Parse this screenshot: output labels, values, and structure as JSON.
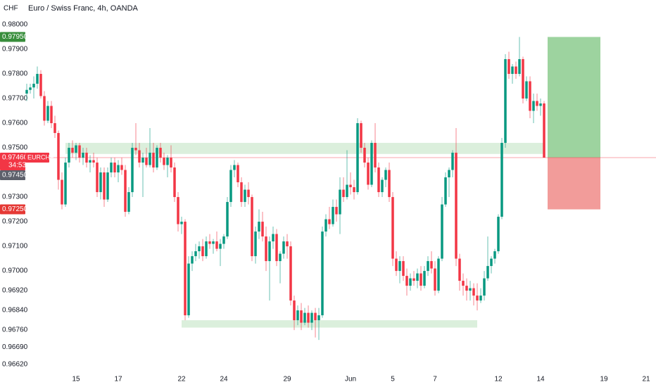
{
  "chart_data": {
    "type": "candlestick",
    "title": "Euro / Swiss Franc, 4h, OANDA",
    "currency": "CHF",
    "symbol": "EURCHF",
    "countdown": "34:53",
    "up_color": "#089981",
    "down_color": "#f23645",
    "ylim": [
      0.96586,
      0.981
    ],
    "xlim": [
      -0.6,
      178.8
    ],
    "yticks": [
      {
        "value": 0.98,
        "label": "0.98000"
      },
      {
        "value": 0.979,
        "label": "0.97900"
      },
      {
        "value": 0.978,
        "label": "0.97800"
      },
      {
        "value": 0.977,
        "label": "0.97700"
      },
      {
        "value": 0.976,
        "label": "0.97600"
      },
      {
        "value": 0.975,
        "label": "0.97500"
      },
      {
        "value": 0.973,
        "label": "0.97300"
      },
      {
        "value": 0.972,
        "label": "0.97200"
      },
      {
        "value": 0.971,
        "label": "0.97100"
      },
      {
        "value": 0.97,
        "label": "0.97000"
      },
      {
        "value": 0.9692,
        "label": "0.96920"
      },
      {
        "value": 0.9684,
        "label": "0.96840"
      },
      {
        "value": 0.9676,
        "label": "0.96760"
      },
      {
        "value": 0.9669,
        "label": "0.96690"
      },
      {
        "value": 0.9662,
        "label": "0.96620"
      }
    ],
    "xticks": [
      {
        "value": 14,
        "label": "15"
      },
      {
        "value": 26,
        "label": "17"
      },
      {
        "value": 44,
        "label": "22"
      },
      {
        "value": 56,
        "label": "24"
      },
      {
        "value": 74,
        "label": "29"
      },
      {
        "value": 92,
        "label": "Jun"
      },
      {
        "value": 104,
        "label": "5"
      },
      {
        "value": 116,
        "label": "7"
      },
      {
        "value": 134,
        "label": "12"
      },
      {
        "value": 146,
        "label": "14"
      },
      {
        "value": 164,
        "label": "19"
      },
      {
        "value": 176,
        "label": "21"
      }
    ],
    "last_price": {
      "value": 0.9746,
      "label": "0.97460"
    },
    "crosshair_price": {
      "value": 0.9745,
      "label": "0.97450"
    },
    "position": {
      "from": 148,
      "to": 163,
      "target": 0.9795,
      "target_label": "0.97950",
      "entry": 0.9746,
      "stop": 0.9725,
      "stop_label": "0.97250"
    },
    "zones": [
      {
        "from": 11,
        "to": 147,
        "top": 0.9752,
        "bottom": 0.97475
      },
      {
        "from": 44,
        "to": 128,
        "top": 0.968,
        "bottom": 0.9677
      }
    ],
    "candles": [
      [
        0.9772,
        0.9776,
        0.9769,
        0.97735
      ],
      [
        0.97735,
        0.9776,
        0.9772,
        0.97745
      ],
      [
        0.97745,
        0.9779,
        0.977,
        0.9776
      ],
      [
        0.9776,
        0.9783,
        0.9774,
        0.978
      ],
      [
        0.978,
        0.97815,
        0.977,
        0.9771
      ],
      [
        0.9771,
        0.9773,
        0.9759,
        0.9761
      ],
      [
        0.9761,
        0.9769,
        0.976,
        0.9767
      ],
      [
        0.9767,
        0.9769,
        0.9758,
        0.976
      ],
      [
        0.976,
        0.9763,
        0.9754,
        0.9756
      ],
      [
        0.9756,
        0.9757,
        0.9733,
        0.9737
      ],
      [
        0.9737,
        0.974,
        0.9725,
        0.9727
      ],
      [
        0.9727,
        0.9746,
        0.9726,
        0.9744
      ],
      [
        0.9744,
        0.9752,
        0.9742,
        0.975
      ],
      [
        0.975,
        0.9753,
        0.9746,
        0.9748
      ],
      [
        0.9748,
        0.9752,
        0.9745,
        0.9751
      ],
      [
        0.9751,
        0.9752,
        0.9744,
        0.9746
      ],
      [
        0.9746,
        0.975,
        0.9743,
        0.9748
      ],
      [
        0.9748,
        0.975,
        0.9742,
        0.9744
      ],
      [
        0.9744,
        0.9747,
        0.974,
        0.9745
      ],
      [
        0.9745,
        0.9748,
        0.9742,
        0.9744
      ],
      [
        0.9744,
        0.9746,
        0.973,
        0.9732
      ],
      [
        0.9732,
        0.9742,
        0.9729,
        0.974
      ],
      [
        0.974,
        0.9742,
        0.9726,
        0.9729
      ],
      [
        0.9729,
        0.9742,
        0.9728,
        0.974
      ],
      [
        0.974,
        0.9746,
        0.9738,
        0.9744
      ],
      [
        0.9744,
        0.9746,
        0.9738,
        0.974
      ],
      [
        0.974,
        0.9745,
        0.9736,
        0.9743
      ],
      [
        0.9743,
        0.9746,
        0.9739,
        0.9741
      ],
      [
        0.9741,
        0.9743,
        0.9722,
        0.9724
      ],
      [
        0.9724,
        0.9734,
        0.9723,
        0.9732
      ],
      [
        0.9732,
        0.9752,
        0.973,
        0.975
      ],
      [
        0.975,
        0.976,
        0.9747,
        0.9749
      ],
      [
        0.9749,
        0.9752,
        0.9742,
        0.9744
      ],
      [
        0.9744,
        0.9748,
        0.973,
        0.9746
      ],
      [
        0.9746,
        0.975,
        0.9742,
        0.9743
      ],
      [
        0.9743,
        0.9758,
        0.9742,
        0.9748
      ],
      [
        0.9748,
        0.9752,
        0.974,
        0.9742
      ],
      [
        0.9742,
        0.9751,
        0.9741,
        0.975
      ],
      [
        0.975,
        0.9752,
        0.9744,
        0.9746
      ],
      [
        0.9746,
        0.9748,
        0.9741,
        0.9743
      ],
      [
        0.9743,
        0.9747,
        0.9738,
        0.9746
      ],
      [
        0.9746,
        0.9751,
        0.974,
        0.9742
      ],
      [
        0.9742,
        0.9744,
        0.9728,
        0.973
      ],
      [
        0.973,
        0.9732,
        0.9716,
        0.9719
      ],
      [
        0.9719,
        0.9722,
        0.9715,
        0.972
      ],
      [
        0.972,
        0.9721,
        0.968,
        0.9682
      ],
      [
        0.9682,
        0.9706,
        0.9681,
        0.9703
      ],
      [
        0.9703,
        0.9708,
        0.97,
        0.9706
      ],
      [
        0.9706,
        0.9711,
        0.9704,
        0.9708
      ],
      [
        0.9708,
        0.9712,
        0.9705,
        0.971
      ],
      [
        0.971,
        0.9713,
        0.9704,
        0.9706
      ],
      [
        0.9706,
        0.9714,
        0.9705,
        0.9712
      ],
      [
        0.9712,
        0.9715,
        0.9709,
        0.9711
      ],
      [
        0.9711,
        0.9713,
        0.9707,
        0.9712
      ],
      [
        0.9712,
        0.9716,
        0.9708,
        0.9709
      ],
      [
        0.9709,
        0.9713,
        0.9702,
        0.9711
      ],
      [
        0.9711,
        0.9715,
        0.9709,
        0.9714
      ],
      [
        0.9714,
        0.973,
        0.9713,
        0.9728
      ],
      [
        0.9728,
        0.9743,
        0.9726,
        0.9741
      ],
      [
        0.9741,
        0.9745,
        0.9738,
        0.9743
      ],
      [
        0.9743,
        0.9744,
        0.9734,
        0.9736
      ],
      [
        0.9736,
        0.9738,
        0.9726,
        0.9728
      ],
      [
        0.9728,
        0.9735,
        0.9726,
        0.9733
      ],
      [
        0.9733,
        0.9736,
        0.9727,
        0.973
      ],
      [
        0.973,
        0.9731,
        0.9704,
        0.9706
      ],
      [
        0.9706,
        0.9718,
        0.9703,
        0.9716
      ],
      [
        0.9716,
        0.9725,
        0.9713,
        0.972
      ],
      [
        0.972,
        0.9724,
        0.9712,
        0.9714
      ],
      [
        0.9714,
        0.9718,
        0.97,
        0.9704
      ],
      [
        0.9704,
        0.9714,
        0.9688,
        0.9712
      ],
      [
        0.9712,
        0.9718,
        0.9709,
        0.9715
      ],
      [
        0.9715,
        0.9717,
        0.9702,
        0.9704
      ],
      [
        0.9704,
        0.9708,
        0.9695,
        0.9707
      ],
      [
        0.9707,
        0.9714,
        0.9705,
        0.9712
      ],
      [
        0.9712,
        0.9715,
        0.9705,
        0.971
      ],
      [
        0.971,
        0.9712,
        0.9686,
        0.9688
      ],
      [
        0.9688,
        0.969,
        0.9676,
        0.968
      ],
      [
        0.968,
        0.9686,
        0.9678,
        0.9684
      ],
      [
        0.9684,
        0.9687,
        0.9676,
        0.9679
      ],
      [
        0.9679,
        0.9685,
        0.9678,
        0.9683
      ],
      [
        0.9683,
        0.9686,
        0.9677,
        0.9679
      ],
      [
        0.9679,
        0.9684,
        0.9676,
        0.9683
      ],
      [
        0.9683,
        0.9685,
        0.9673,
        0.968
      ],
      [
        0.968,
        0.9685,
        0.9672,
        0.9682
      ],
      [
        0.9682,
        0.9718,
        0.9681,
        0.9716
      ],
      [
        0.9716,
        0.9723,
        0.9714,
        0.9721
      ],
      [
        0.9721,
        0.9726,
        0.9717,
        0.9719
      ],
      [
        0.9719,
        0.9729,
        0.9718,
        0.9726
      ],
      [
        0.9726,
        0.9729,
        0.972,
        0.9723
      ],
      [
        0.9723,
        0.9738,
        0.9715,
        0.9733
      ],
      [
        0.9733,
        0.9738,
        0.9728,
        0.973
      ],
      [
        0.973,
        0.9749,
        0.9729,
        0.9735
      ],
      [
        0.9735,
        0.974,
        0.9731,
        0.9734
      ],
      [
        0.9734,
        0.9737,
        0.9729,
        0.9732
      ],
      [
        0.9732,
        0.9762,
        0.9731,
        0.976
      ],
      [
        0.976,
        0.9761,
        0.9748,
        0.975
      ],
      [
        0.975,
        0.9752,
        0.9742,
        0.9744
      ],
      [
        0.9744,
        0.9746,
        0.9733,
        0.9735
      ],
      [
        0.9735,
        0.9753,
        0.9734,
        0.9752
      ],
      [
        0.9752,
        0.976,
        0.974,
        0.9742
      ],
      [
        0.9742,
        0.9744,
        0.973,
        0.9732
      ],
      [
        0.9732,
        0.9738,
        0.973,
        0.9737
      ],
      [
        0.9737,
        0.9742,
        0.9734,
        0.9741
      ],
      [
        0.9741,
        0.9744,
        0.9728,
        0.973
      ],
      [
        0.973,
        0.9732,
        0.9702,
        0.9705
      ],
      [
        0.9705,
        0.9708,
        0.9698,
        0.97
      ],
      [
        0.97,
        0.9706,
        0.9695,
        0.9704
      ],
      [
        0.9704,
        0.9706,
        0.9696,
        0.9698
      ],
      [
        0.9698,
        0.9701,
        0.969,
        0.9694
      ],
      [
        0.9694,
        0.9699,
        0.9692,
        0.9697
      ],
      [
        0.9697,
        0.97,
        0.9694,
        0.9696
      ],
      [
        0.9696,
        0.9701,
        0.9693,
        0.9699
      ],
      [
        0.9699,
        0.9702,
        0.9692,
        0.9694
      ],
      [
        0.9694,
        0.9702,
        0.9693,
        0.97
      ],
      [
        0.97,
        0.9706,
        0.9698,
        0.9704
      ],
      [
        0.9704,
        0.9708,
        0.9699,
        0.9701
      ],
      [
        0.9701,
        0.9704,
        0.969,
        0.9692
      ],
      [
        0.9692,
        0.9706,
        0.9691,
        0.9705
      ],
      [
        0.9705,
        0.973,
        0.9704,
        0.9727
      ],
      [
        0.9727,
        0.974,
        0.9726,
        0.9738
      ],
      [
        0.9738,
        0.9742,
        0.973,
        0.9741
      ],
      [
        0.9741,
        0.9749,
        0.9738,
        0.9748
      ],
      [
        0.9748,
        0.9758,
        0.9702,
        0.9705
      ],
      [
        0.9705,
        0.9707,
        0.9692,
        0.9696
      ],
      [
        0.9696,
        0.9699,
        0.969,
        0.9694
      ],
      [
        0.9694,
        0.9697,
        0.9688,
        0.9692
      ],
      [
        0.9692,
        0.9696,
        0.9688,
        0.9693
      ],
      [
        0.9693,
        0.9695,
        0.9686,
        0.969
      ],
      [
        0.969,
        0.9695,
        0.9684,
        0.9688
      ],
      [
        0.9688,
        0.9693,
        0.9687,
        0.969
      ],
      [
        0.969,
        0.97,
        0.9688,
        0.9697
      ],
      [
        0.9697,
        0.9714,
        0.9696,
        0.9702
      ],
      [
        0.9702,
        0.9706,
        0.9699,
        0.9705
      ],
      [
        0.9705,
        0.9709,
        0.9703,
        0.9708
      ],
      [
        0.9708,
        0.9723,
        0.9707,
        0.9722
      ],
      [
        0.9722,
        0.9754,
        0.9721,
        0.9752
      ],
      [
        0.9752,
        0.9788,
        0.975,
        0.9786
      ],
      [
        0.9786,
        0.9789,
        0.9778,
        0.978
      ],
      [
        0.978,
        0.9784,
        0.9776,
        0.9783
      ],
      [
        0.9783,
        0.9785,
        0.9778,
        0.978
      ],
      [
        0.978,
        0.9795,
        0.9779,
        0.9786
      ],
      [
        0.9786,
        0.9787,
        0.9768,
        0.977
      ],
      [
        0.977,
        0.9779,
        0.9769,
        0.9777
      ],
      [
        0.9777,
        0.9779,
        0.9762,
        0.9765
      ],
      [
        0.9765,
        0.9772,
        0.976,
        0.9769
      ],
      [
        0.9769,
        0.9772,
        0.9765,
        0.9767
      ],
      [
        0.9767,
        0.977,
        0.9763,
        0.9768
      ],
      [
        0.9768,
        0.9769,
        0.9746,
        0.9746
      ]
    ]
  }
}
